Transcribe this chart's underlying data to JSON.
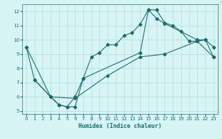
{
  "title": "",
  "xlabel": "Humidex (Indice chaleur)",
  "bg_color": "#d8f5f5",
  "line_color": "#1a6b6b",
  "grid_color": "#b8dede",
  "xlim": [
    -0.5,
    23.5
  ],
  "ylim": [
    4.8,
    12.5
  ],
  "xticks": [
    0,
    1,
    2,
    3,
    4,
    5,
    6,
    7,
    8,
    9,
    10,
    11,
    12,
    13,
    14,
    15,
    16,
    17,
    18,
    19,
    20,
    21,
    22,
    23
  ],
  "yticks": [
    5,
    6,
    7,
    8,
    9,
    10,
    11,
    12
  ],
  "line1_x": [
    0,
    1,
    3,
    4,
    5,
    6,
    7,
    8,
    9,
    10,
    11,
    12,
    13,
    14,
    15,
    16,
    17,
    18,
    19,
    20,
    21,
    22,
    23
  ],
  "line1_y": [
    9.5,
    7.2,
    6.0,
    5.45,
    5.3,
    5.3,
    7.3,
    8.8,
    9.1,
    9.65,
    9.65,
    10.3,
    10.5,
    11.1,
    12.1,
    12.1,
    11.2,
    11.0,
    10.6,
    9.9,
    9.9,
    10.0,
    9.5
  ],
  "line2_x": [
    1,
    3,
    4,
    5,
    6,
    7,
    14,
    15,
    16,
    17,
    21,
    22,
    23
  ],
  "line2_y": [
    7.2,
    6.0,
    5.45,
    5.3,
    6.0,
    7.3,
    9.1,
    12.1,
    11.5,
    11.15,
    10.0,
    10.0,
    8.8
  ],
  "line3_x": [
    0,
    3,
    6,
    10,
    14,
    17,
    21,
    23
  ],
  "line3_y": [
    9.5,
    6.0,
    5.9,
    7.5,
    8.8,
    9.0,
    9.9,
    8.8
  ]
}
